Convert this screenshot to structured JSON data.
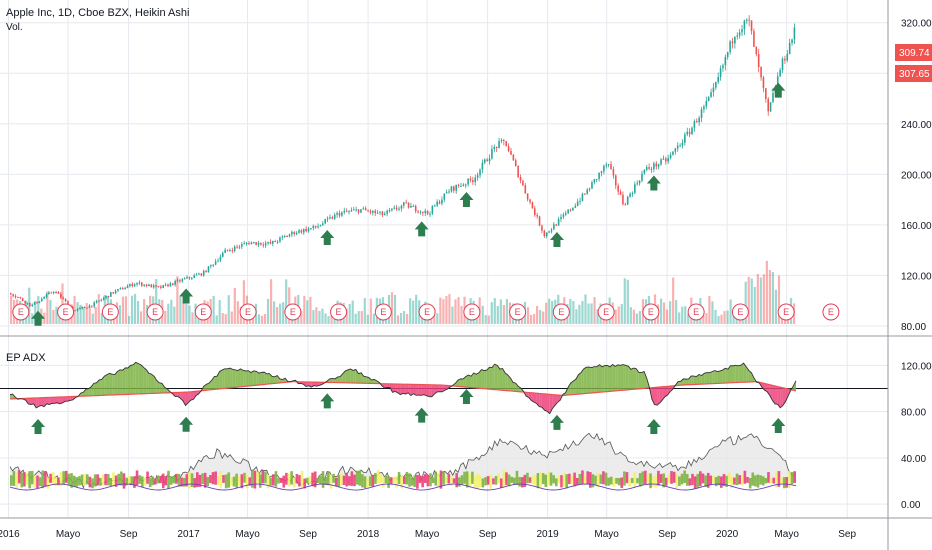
{
  "header": {
    "title": "Apple Inc, 1D, Cboe BZX, Heikin Ashi",
    "volume_label": "Vol."
  },
  "indicator": {
    "title": "EP ADX"
  },
  "price_tags": [
    {
      "value": "309.74",
      "color": "#ef5350"
    },
    {
      "value": "307.65",
      "color": "#ef5350"
    }
  ],
  "colors": {
    "up": "#26a69a",
    "down": "#ef5350",
    "arrow": "#2e7d4f",
    "grid": "#e6e9ee",
    "ema": "#ef5350",
    "di_plus_fill": "#7cb342",
    "di_minus_fill": "#ec407a",
    "neutral_fill": "#f4f36a",
    "adx_fill": "#e6e6e6"
  },
  "chart_data": [
    {
      "type": "line",
      "name": "price-panel",
      "series": [
        {
          "name": "",
          "x": [
            "2016-01-04",
            "2016-02-15",
            "2016-04-01",
            "2016-05-12",
            "2016-06-20",
            "2016-08-01",
            "2016-09-15",
            "2016-11-01",
            "2016-12-15",
            "2017-01-30",
            "2017-03-15",
            "2017-05-01",
            "2017-06-15",
            "2017-08-01",
            "2017-09-15",
            "2017-11-01",
            "2017-12-15",
            "2018-01-30",
            "2018-03-15",
            "2018-05-01",
            "2018-06-15",
            "2018-08-01",
            "2018-09-15",
            "2018-10-05",
            "2018-11-15",
            "2018-12-24",
            "2019-01-30",
            "2019-03-15",
            "2019-05-01",
            "2019-06-03",
            "2019-07-15",
            "2019-09-01",
            "2019-10-15",
            "2019-12-01",
            "2020-01-15",
            "2020-02-12",
            "2020-03-01",
            "2020-03-23",
            "2020-04-15",
            "2020-05-20"
          ],
          "y": [
            106,
            96,
            108,
            92,
            97,
            107,
            114,
            110,
            116,
            122,
            139,
            146,
            145,
            154,
            158,
            169,
            172,
            168,
            176,
            169,
            188,
            196,
            222,
            226,
            186,
            152,
            166,
            184,
            209,
            176,
            203,
            212,
            234,
            264,
            312,
            322,
            288,
            248,
            282,
            318
          ]
        }
      ],
      "ylim": [
        72,
        338
      ],
      "y_ticks": [
        80,
        120,
        160,
        200,
        240,
        280,
        320
      ],
      "y_tick_labels": [
        "80.00",
        "120.00",
        "160.00",
        "200.00",
        "240.00",
        "280.00",
        "320.00"
      ],
      "signal_arrows_x": [
        "2016-03-01",
        "2016-12-27",
        "2017-10-10",
        "2018-04-20",
        "2018-07-20",
        "2019-01-20",
        "2019-08-05",
        "2020-04-14"
      ],
      "earnings_markers_x": [
        "2016-01-26",
        "2016-04-26",
        "2016-07-26",
        "2016-10-25",
        "2017-01-31",
        "2017-05-02",
        "2017-08-01",
        "2017-11-02",
        "2018-02-01",
        "2018-05-01",
        "2018-07-31",
        "2018-11-01",
        "2019-01-29",
        "2019-04-30",
        "2019-07-30",
        "2019-10-30",
        "2020-01-28",
        "2020-04-30",
        "2020-07-30"
      ],
      "earnings_label": "E"
    },
    {
      "type": "line",
      "name": "EP ADX",
      "series": [
        {
          "name": "",
          "x": [
            "2016-01-04",
            "2016-03-01",
            "2016-05-12",
            "2016-07-15",
            "2016-09-20",
            "2016-12-27",
            "2017-03-15",
            "2017-06-15",
            "2017-09-15",
            "2017-12-01",
            "2018-03-01",
            "2018-05-10",
            "2018-07-20",
            "2018-09-20",
            "2018-11-15",
            "2019-01-03",
            "2019-03-15",
            "2019-06-01",
            "2019-07-20",
            "2019-08-05",
            "2019-10-01",
            "2019-12-15",
            "2020-02-01",
            "2020-03-20",
            "2020-04-20",
            "2020-05-20"
          ],
          "y": [
            95,
            84,
            91,
            110,
            122,
            86,
            118,
            112,
            101,
            117,
            96,
            93,
            110,
            121,
            96,
            78,
            118,
            121,
            113,
            84,
            108,
            115,
            122,
            97,
            82,
            107
          ]
        },
        {
          "name": "",
          "x": [
            "2016-01-04",
            "2017-01-01",
            "2017-08-01",
            "2018-06-01",
            "2019-02-01",
            "2019-10-01",
            "2020-03-01",
            "2020-05-20"
          ],
          "y": [
            91,
            97,
            106,
            103,
            94,
            103,
            106,
            98
          ]
        },
        {
          "name": "",
          "x": [
            "2016-01-04",
            "2016-06-01",
            "2016-12-01",
            "2017-03-01",
            "2017-06-01",
            "2017-09-01",
            "2017-12-01",
            "2018-03-01",
            "2018-07-01",
            "2018-10-01",
            "2019-01-01",
            "2019-04-01",
            "2019-07-01",
            "2019-10-01",
            "2020-01-01",
            "2020-03-01",
            "2020-05-20"
          ],
          "y": [
            30,
            18,
            22,
            45,
            28,
            19,
            32,
            22,
            28,
            56,
            42,
            60,
            35,
            31,
            54,
            58,
            25
          ]
        }
      ],
      "ylim": [
        -12,
        142
      ],
      "reference_line": 100,
      "y_ticks": [
        0,
        40,
        80,
        120
      ],
      "y_tick_labels": [
        "0.00",
        "40.00",
        "80.00",
        "120.00"
      ],
      "signal_arrows_x": [
        "2016-03-01",
        "2016-12-27",
        "2017-10-10",
        "2018-04-20",
        "2018-07-20",
        "2019-01-20",
        "2019-08-05",
        "2020-04-14"
      ]
    }
  ],
  "x_axis": {
    "ticks": [
      {
        "date": "2016-01-01",
        "label": "2016"
      },
      {
        "date": "2016-05-01",
        "label": "Mayo"
      },
      {
        "date": "2016-09-01",
        "label": "Sep"
      },
      {
        "date": "2017-01-01",
        "label": "2017"
      },
      {
        "date": "2017-05-01",
        "label": "Mayo"
      },
      {
        "date": "2017-09-01",
        "label": "Sep"
      },
      {
        "date": "2018-01-01",
        "label": "2018"
      },
      {
        "date": "2018-05-01",
        "label": "Mayo"
      },
      {
        "date": "2018-09-01",
        "label": "Sep"
      },
      {
        "date": "2019-01-01",
        "label": "2019"
      },
      {
        "date": "2019-05-01",
        "label": "Mayo"
      },
      {
        "date": "2019-09-01",
        "label": "Sep"
      },
      {
        "date": "2020-01-01",
        "label": "2020"
      },
      {
        "date": "2020-05-01",
        "label": "Mayo"
      },
      {
        "date": "2020-09-01",
        "label": "Sep"
      }
    ]
  }
}
